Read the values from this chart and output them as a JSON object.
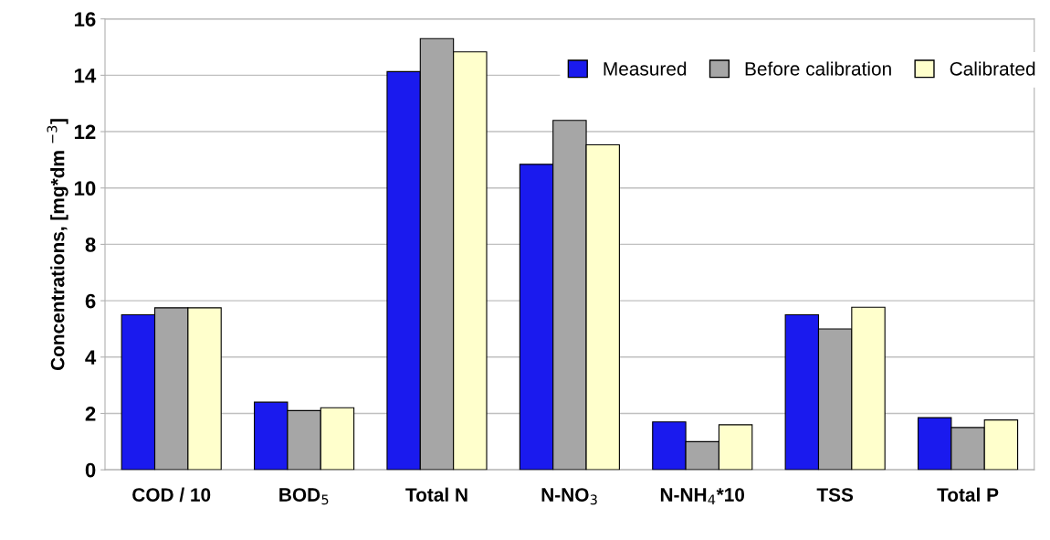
{
  "chart_data": {
    "type": "bar",
    "ylabel": "Concentrations, [mg*dm $^{−3}$]",
    "categories": [
      "COD / 10",
      "BOD$_{5}$",
      "Total N",
      "N-NO$_{3}$",
      "N-NH$_{4}$*10",
      "TSS",
      "Total P"
    ],
    "series": [
      {
        "name": "Measured",
        "color": "#1a1aee",
        "values": [
          5.5,
          2.4,
          14.13,
          10.84,
          1.7,
          5.5,
          1.85
        ]
      },
      {
        "name": "Before calibration",
        "color": "#a6a6a6",
        "values": [
          5.75,
          2.1,
          15.3,
          12.4,
          1.0,
          5.0,
          1.5
        ]
      },
      {
        "name": "Calibrated",
        "color": "#ffffcc",
        "values": [
          5.75,
          2.2,
          14.83,
          11.53,
          1.6,
          5.77,
          1.77
        ]
      }
    ],
    "ylim": [
      0,
      16
    ],
    "yticks": [
      0,
      2,
      4,
      6,
      8,
      10,
      12,
      14,
      16
    ],
    "grid": "y",
    "legend": "top right"
  }
}
